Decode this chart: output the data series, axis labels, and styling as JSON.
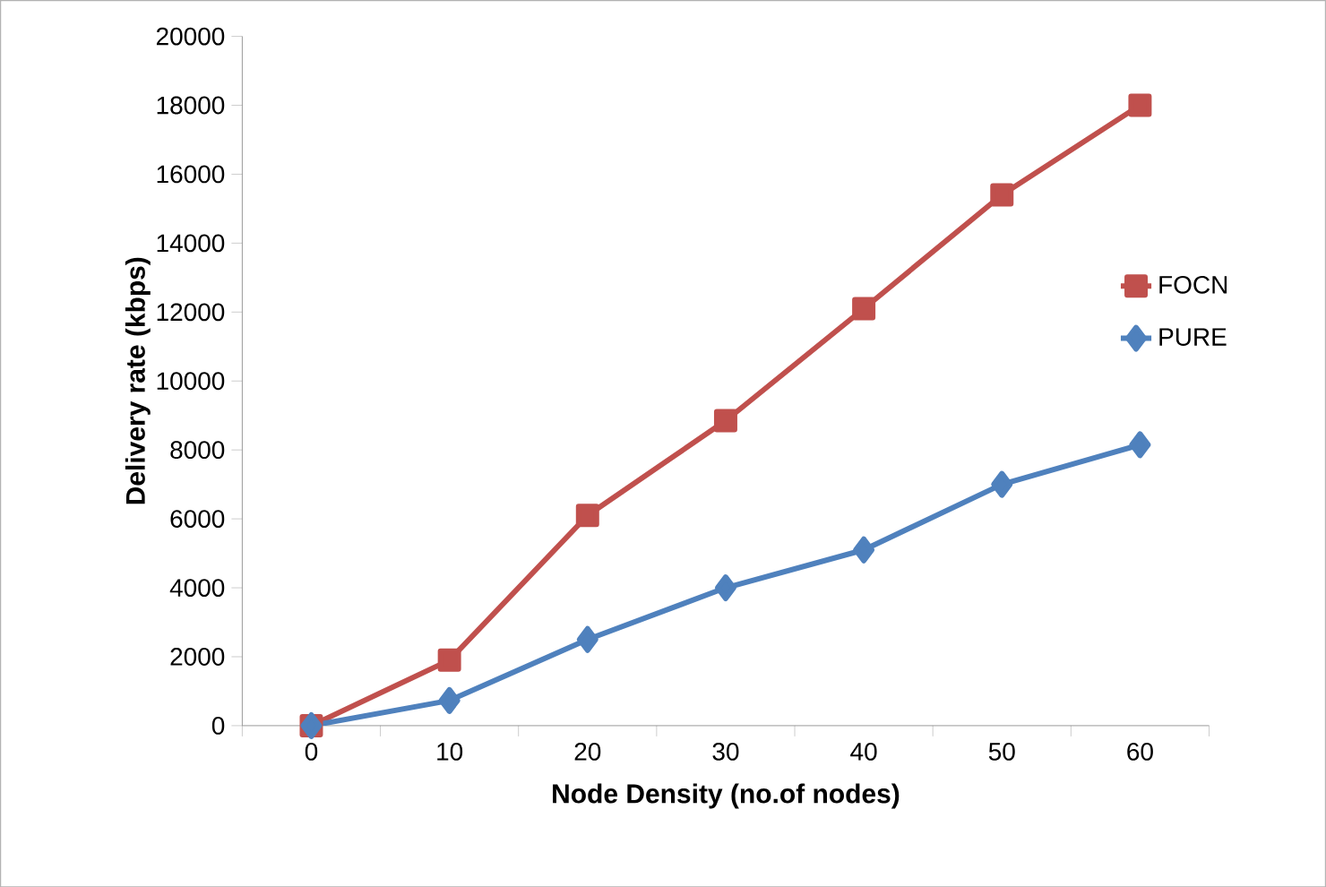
{
  "chart_data": {
    "type": "line",
    "xlabel": "Node Density (no.of nodes)",
    "ylabel": "Delivery rate (kbps)",
    "categories": [
      "0",
      "10",
      "20",
      "30",
      "40",
      "50",
      "60"
    ],
    "series": [
      {
        "name": "FOCN",
        "color": "#c0504d",
        "marker": "square",
        "values": [
          0,
          1900,
          6100,
          8850,
          12100,
          15400,
          18000
        ]
      },
      {
        "name": "PURE",
        "color": "#4f81bd",
        "marker": "diamond",
        "values": [
          0,
          730,
          2500,
          4000,
          5100,
          7000,
          8150
        ]
      }
    ],
    "ylim": [
      0,
      20000
    ],
    "yticks": [
      0,
      2000,
      4000,
      6000,
      8000,
      10000,
      12000,
      14000,
      16000,
      18000,
      20000
    ],
    "grid": false,
    "legend": "right",
    "line_style": "solid"
  }
}
